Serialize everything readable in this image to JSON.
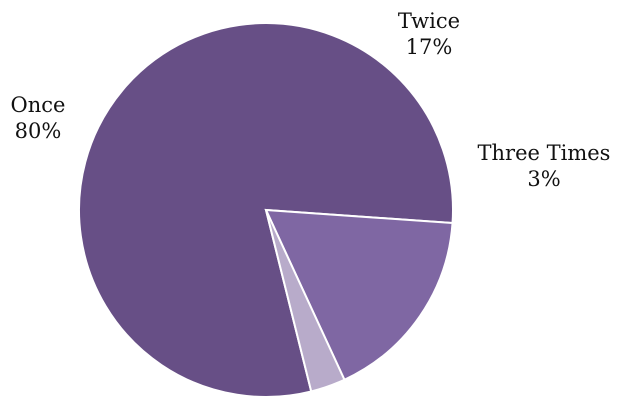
{
  "chart_data": {
    "type": "pie",
    "title": "",
    "categories": [
      "Once",
      "Twice",
      "Three Times"
    ],
    "values": [
      80,
      17,
      3
    ],
    "percent_labels": [
      "80%",
      "17%",
      "3%"
    ],
    "colors": [
      "#674f86",
      "#7f67a3",
      "#b8abca"
    ],
    "legend": "none",
    "data_labels": "outside"
  }
}
